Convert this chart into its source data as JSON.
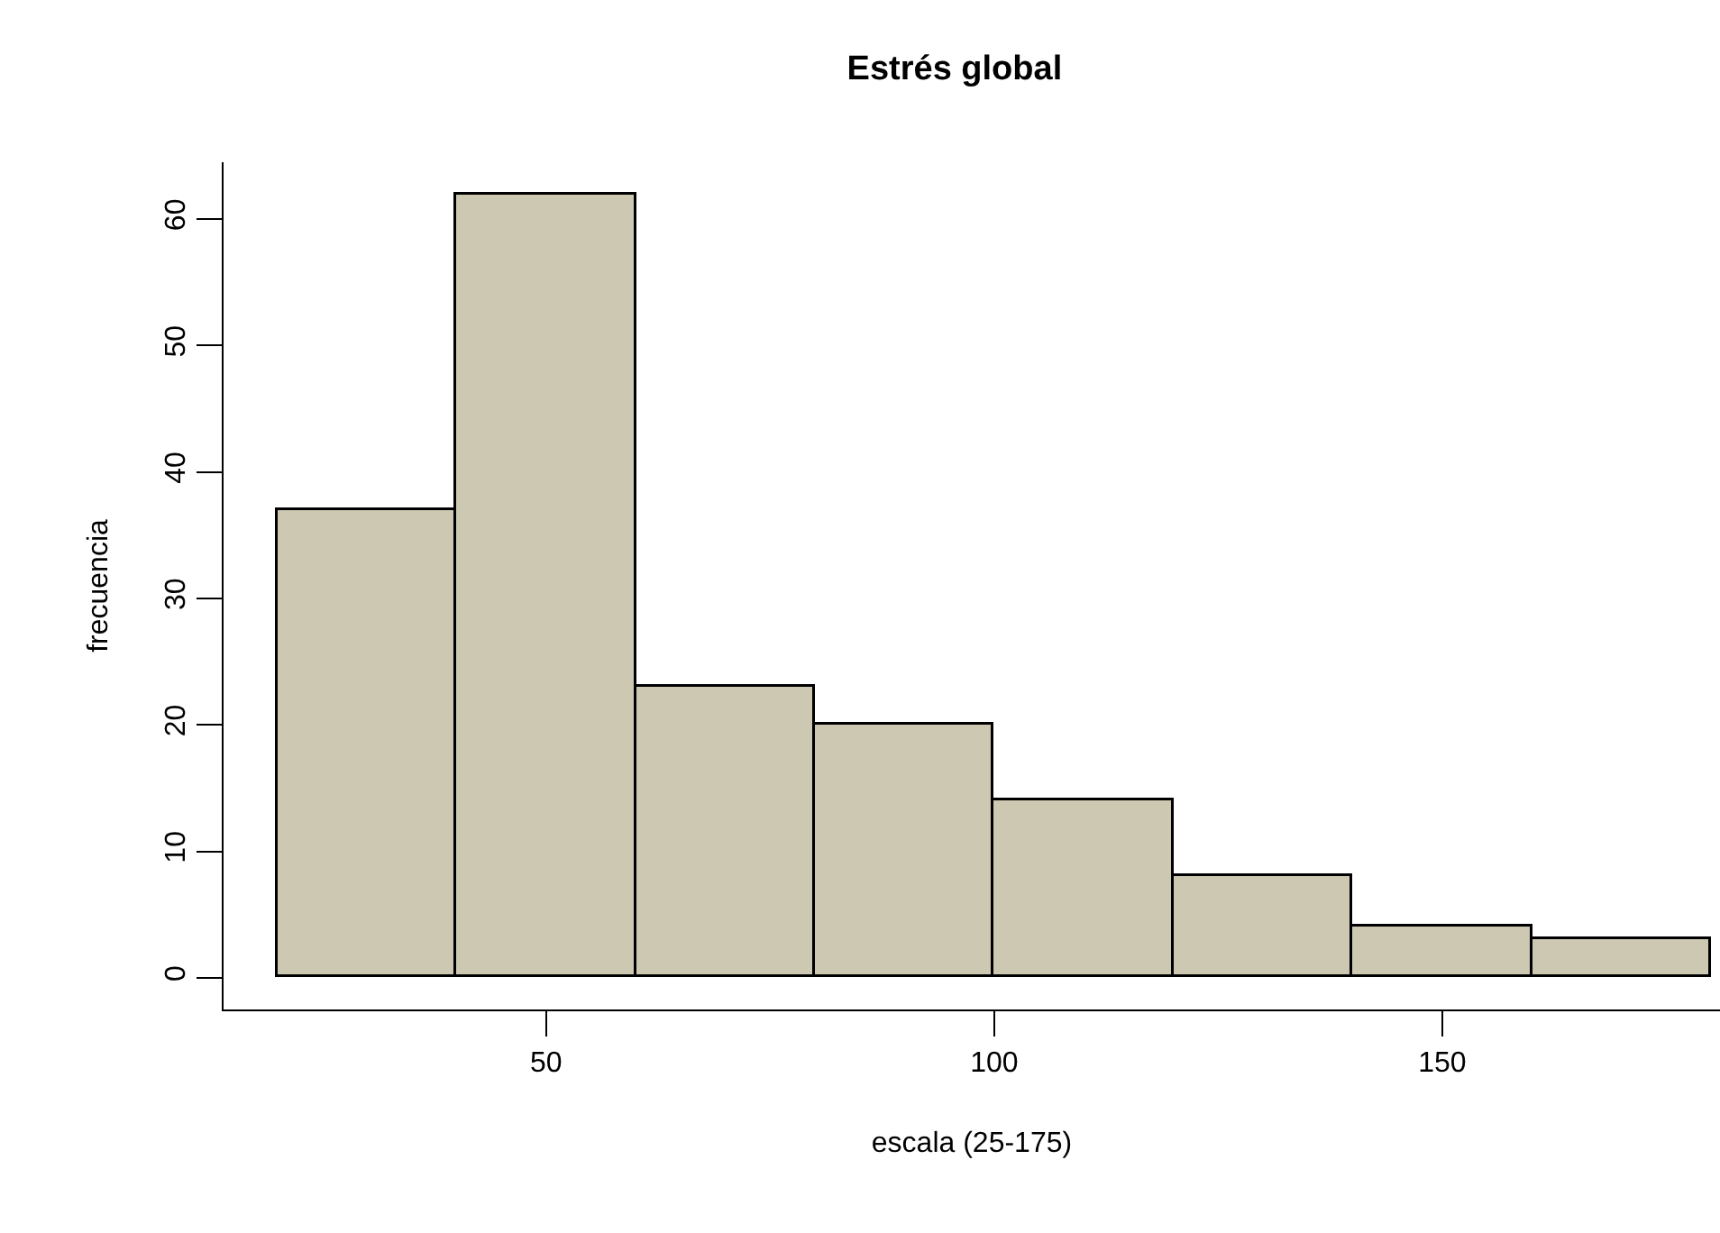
{
  "chart_data": {
    "type": "histogram",
    "title": "Estrés global",
    "xlabel": "escala (25-175)",
    "ylabel": "frecuencia",
    "bins": [
      20,
      40,
      60,
      80,
      100,
      120,
      140,
      160,
      180
    ],
    "values": [
      37,
      62,
      23,
      20,
      14,
      8,
      4,
      3
    ],
    "color": "#cdc8b1",
    "xlim": [
      14,
      181
    ],
    "ylim": [
      -2.5,
      64.5
    ],
    "xticks": [
      50,
      100,
      150
    ],
    "yticks": [
      0,
      10,
      20,
      30,
      40,
      50,
      60
    ]
  }
}
